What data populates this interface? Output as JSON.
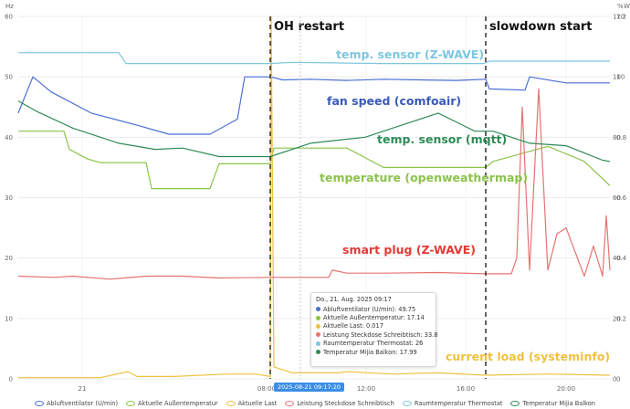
{
  "chart_data": {
    "type": "line",
    "x_tick_labels": [
      "21",
      "08:00",
      "12:00",
      "16:00",
      "20:00"
    ],
    "left_axis": {
      "unit": "Hz",
      "ticks": [
        "0",
        "10",
        "20",
        "30",
        "40",
        "50",
        "60"
      ],
      "ylim": [
        0,
        60
      ]
    },
    "right_axis_1": {
      "unit": "%",
      "ticks": [
        "0",
        "0.2",
        "0.4",
        "0.6",
        "0.8",
        "1",
        "1.2"
      ],
      "ylim": [
        0,
        1.2
      ]
    },
    "right_axis_2": {
      "unit": "W",
      "ticks": [
        "0",
        "20",
        "40",
        "60",
        "80",
        "100",
        "120"
      ],
      "ylim": [
        0,
        120
      ]
    },
    "events": [
      {
        "label": "OH restart",
        "x": 296
      },
      {
        "label": "slowdown start",
        "x": 532
      }
    ],
    "series_labels": [
      {
        "text": "temp. sensor (Z-WAVE)",
        "color": "#7ec6e0"
      },
      {
        "text": "fan speed (comfoair)",
        "color": "#3a5ab8"
      },
      {
        "text": "temp. sensor (mqtt)",
        "color": "#2e8b57"
      },
      {
        "text": "temperature (openweathermap)",
        "color": "#8bc34a"
      },
      {
        "text": "smart plug (Z-WAVE)",
        "color": "#e53935"
      },
      {
        "text": "current load (systeminfo)",
        "color": "#f0c040"
      }
    ],
    "series": [
      {
        "name": "Abluftventilator (U/min)",
        "color": "#4a6fd4",
        "points": [
          [
            20,
            44
          ],
          [
            36,
            50
          ],
          [
            56,
            47.5
          ],
          [
            100,
            44
          ],
          [
            150,
            42
          ],
          [
            185,
            40.5
          ],
          [
            230,
            40.5
          ],
          [
            260,
            43
          ],
          [
            268,
            50
          ],
          [
            296,
            50
          ],
          [
            310,
            49.5
          ],
          [
            340,
            49.6
          ],
          [
            380,
            49.4
          ],
          [
            420,
            49.6
          ],
          [
            460,
            49.5
          ],
          [
            500,
            49.4
          ],
          [
            532,
            49.6
          ],
          [
            536,
            48
          ],
          [
            575,
            47.8
          ],
          [
            580,
            50
          ],
          [
            620,
            49
          ],
          [
            650,
            49
          ],
          [
            668,
            49
          ]
        ]
      },
      {
        "name": "Aktuelle Außentemperatur",
        "color": "#8bc34a",
        "points": [
          [
            20,
            41
          ],
          [
            70,
            41
          ],
          [
            76,
            38
          ],
          [
            96,
            36.4
          ],
          [
            110,
            35.8
          ],
          [
            160,
            35.8
          ],
          [
            166,
            31.5
          ],
          [
            230,
            31.5
          ],
          [
            240,
            35.6
          ],
          [
            296,
            35.6
          ],
          [
            300,
            38.2
          ],
          [
            380,
            38.2
          ],
          [
            420,
            35
          ],
          [
            532,
            35
          ],
          [
            540,
            36
          ],
          [
            600,
            38.5
          ],
          [
            640,
            36
          ],
          [
            668,
            32
          ]
        ]
      },
      {
        "name": "Aktuelle Last",
        "color": "#f0c040",
        "points": [
          [
            20,
            0.2
          ],
          [
            110,
            0.2
          ],
          [
            140,
            1.2
          ],
          [
            150,
            0.4
          ],
          [
            190,
            0.4
          ],
          [
            250,
            0.8
          ],
          [
            280,
            0.8
          ],
          [
            296,
            0.4
          ],
          [
            297,
            60
          ],
          [
            300,
            2
          ],
          [
            320,
            1
          ],
          [
            370,
            1
          ],
          [
            380,
            1.2
          ],
          [
            430,
            0.8
          ],
          [
            480,
            1
          ],
          [
            532,
            0.6
          ],
          [
            600,
            0.8
          ],
          [
            668,
            0.6
          ]
        ]
      },
      {
        "name": "Leistung Steckdose Schreibtisch",
        "color": "#e57373",
        "points": [
          [
            20,
            17
          ],
          [
            60,
            16.8
          ],
          [
            80,
            17
          ],
          [
            120,
            16.5
          ],
          [
            160,
            17
          ],
          [
            200,
            17
          ],
          [
            240,
            16.7
          ],
          [
            296,
            16.8
          ],
          [
            300,
            16.8
          ],
          [
            360,
            16.8
          ],
          [
            364,
            18
          ],
          [
            380,
            17.5
          ],
          [
            420,
            17.5
          ],
          [
            480,
            17.6
          ],
          [
            532,
            17.4
          ],
          [
            560,
            17.4
          ],
          [
            566,
            20
          ],
          [
            572,
            45
          ],
          [
            580,
            18
          ],
          [
            590,
            48
          ],
          [
            600,
            18
          ],
          [
            610,
            24
          ],
          [
            620,
            25
          ],
          [
            640,
            17
          ],
          [
            650,
            22
          ],
          [
            660,
            17
          ],
          [
            664,
            27
          ],
          [
            668,
            18
          ]
        ]
      },
      {
        "name": "Raumtemperatur Thermostat",
        "color": "#7ec6e0",
        "points": [
          [
            20,
            54
          ],
          [
            130,
            54
          ],
          [
            138,
            52.2
          ],
          [
            296,
            52.2
          ],
          [
            320,
            52.4
          ],
          [
            420,
            52.2
          ],
          [
            530,
            52.2
          ],
          [
            536,
            52.6
          ],
          [
            668,
            52.6
          ]
        ]
      },
      {
        "name": "Temperatur Mijia Balkon",
        "color": "#2e8b57",
        "points": [
          [
            20,
            46
          ],
          [
            40,
            44.3
          ],
          [
            80,
            41.5
          ],
          [
            130,
            39
          ],
          [
            170,
            38
          ],
          [
            200,
            38.2
          ],
          [
            240,
            36.8
          ],
          [
            296,
            36.8
          ],
          [
            340,
            39
          ],
          [
            400,
            40
          ],
          [
            440,
            42
          ],
          [
            480,
            44
          ],
          [
            520,
            41
          ],
          [
            540,
            41
          ],
          [
            580,
            39
          ],
          [
            620,
            38.6
          ],
          [
            660,
            36.2
          ],
          [
            668,
            36
          ]
        ]
      }
    ]
  },
  "tooltip": {
    "title": "Do., 21. Aug. 2025 09:17",
    "rows": [
      {
        "text": "Abluftventilator (U/min): 49.75",
        "color": "#4a6fd4"
      },
      {
        "text": "Aktuelle Außentemperatur: 17.14",
        "color": "#8bc34a"
      },
      {
        "text": "Aktuelle Last: 0.017",
        "color": "#f0c040"
      },
      {
        "text": "Leistung Steckdose Schreibtisch: 33.8",
        "color": "#e57373"
      },
      {
        "text": "Raumtemperatur Thermostat: 26",
        "color": "#7ec6e0"
      },
      {
        "text": "Temperatur Mijia Balkon: 17.99",
        "color": "#2e8b57"
      }
    ]
  },
  "time_badge": "2025-08-21 09:17:20"
}
